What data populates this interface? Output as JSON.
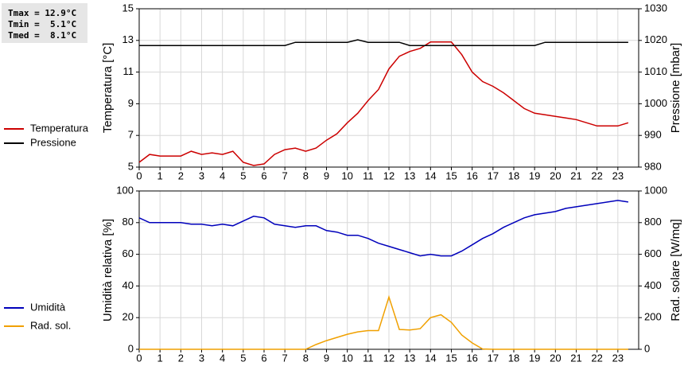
{
  "chart_data": [
    {
      "type": "line",
      "annotations": [
        "Tmax = 12.9°C",
        "Tmin =  5.1°C",
        "Tmed =  8.1°C"
      ],
      "y_label": "Temperatura [°C]",
      "y2_label": "Pressione [mbar]",
      "x": [
        0,
        0.5,
        1,
        1.5,
        2,
        2.5,
        3,
        3.5,
        4,
        4.5,
        5,
        5.5,
        6,
        6.5,
        7,
        7.5,
        8,
        8.5,
        9,
        9.5,
        10,
        10.5,
        11,
        11.5,
        12,
        12.5,
        13,
        13.5,
        14,
        14.5,
        15,
        15.5,
        16,
        16.5,
        17,
        17.5,
        18,
        18.5,
        19,
        19.5,
        20,
        20.5,
        21,
        21.5,
        22,
        22.5,
        23,
        23.5
      ],
      "xlim": [
        0,
        24
      ],
      "xticks": [
        0,
        1,
        2,
        3,
        4,
        5,
        6,
        7,
        8,
        9,
        10,
        11,
        12,
        13,
        14,
        15,
        16,
        17,
        18,
        19,
        20,
        21,
        22,
        23
      ],
      "ylim": [
        5,
        15
      ],
      "yticks": [
        5,
        7,
        9,
        11,
        13,
        15
      ],
      "y2lim": [
        980,
        1030
      ],
      "y2ticks": [
        980,
        990,
        1000,
        1010,
        1020,
        1030
      ],
      "grid": true,
      "series": [
        {
          "name": "Temperatura",
          "color": "#cc0000",
          "values": [
            5.3,
            5.8,
            5.7,
            5.7,
            5.7,
            6.0,
            5.8,
            5.9,
            5.8,
            6.0,
            5.3,
            5.1,
            5.2,
            5.8,
            6.1,
            6.2,
            6.0,
            6.2,
            6.7,
            7.1,
            7.8,
            8.4,
            9.2,
            9.9,
            11.2,
            12.0,
            12.3,
            12.5,
            12.9,
            12.9,
            12.9,
            12.1,
            11.0,
            10.4,
            10.1,
            9.7,
            9.2,
            8.7,
            8.4,
            8.3,
            8.2,
            8.1,
            8.0,
            7.8,
            7.6,
            7.6,
            7.6,
            7.8
          ]
        },
        {
          "name": "Pressione",
          "color": "#000000",
          "axis": "y2",
          "values": [
            1018.4,
            1018.4,
            1018.4,
            1018.4,
            1018.4,
            1018.4,
            1018.4,
            1018.4,
            1018.4,
            1018.4,
            1018.4,
            1018.4,
            1018.4,
            1018.4,
            1018.4,
            1019.4,
            1019.4,
            1019.4,
            1019.4,
            1019.4,
            1019.4,
            1020.2,
            1019.4,
            1019.4,
            1019.4,
            1019.4,
            1018.4,
            1018.4,
            1018.4,
            1018.4,
            1018.4,
            1018.4,
            1018.4,
            1018.4,
            1018.4,
            1018.4,
            1018.4,
            1018.4,
            1018.4,
            1019.4,
            1019.4,
            1019.4,
            1019.4,
            1019.4,
            1019.4,
            1019.4,
            1019.4,
            1019.4
          ]
        }
      ]
    },
    {
      "type": "line",
      "y_label": "Umidità relativa [%]",
      "y2_label": "Rad. solare [W/mq]",
      "x": [
        0,
        0.5,
        1,
        1.5,
        2,
        2.5,
        3,
        3.5,
        4,
        4.5,
        5,
        5.5,
        6,
        6.5,
        7,
        7.5,
        8,
        8.5,
        9,
        9.5,
        10,
        10.5,
        11,
        11.5,
        12,
        12.5,
        13,
        13.5,
        14,
        14.5,
        15,
        15.5,
        16,
        16.5,
        17,
        17.5,
        18,
        18.5,
        19,
        19.5,
        20,
        20.5,
        21,
        21.5,
        22,
        22.5,
        23,
        23.5
      ],
      "xlim": [
        0,
        24
      ],
      "xticks": [
        0,
        1,
        2,
        3,
        4,
        5,
        6,
        7,
        8,
        9,
        10,
        11,
        12,
        13,
        14,
        15,
        16,
        17,
        18,
        19,
        20,
        21,
        22,
        23
      ],
      "ylim": [
        0,
        100
      ],
      "yticks": [
        0,
        20,
        40,
        60,
        80,
        100
      ],
      "y2lim": [
        0,
        1000
      ],
      "y2ticks": [
        0,
        200,
        400,
        600,
        800,
        1000
      ],
      "grid": true,
      "series": [
        {
          "name": "Umidità",
          "color": "#0000bb",
          "values": [
            83,
            80,
            80,
            80,
            80,
            79,
            79,
            78,
            79,
            78,
            81,
            84,
            83,
            79,
            78,
            77,
            78,
            78,
            75,
            74,
            72,
            72,
            70,
            67,
            65,
            63,
            61,
            59,
            60,
            59,
            59,
            62,
            66,
            70,
            73,
            77,
            80,
            83,
            85,
            86,
            87,
            89,
            90,
            91,
            92,
            93,
            94,
            93
          ]
        },
        {
          "name": "Rad. sol.",
          "color": "#f0a000",
          "axis": "y2",
          "values": [
            0,
            0,
            0,
            0,
            0,
            0,
            0,
            0,
            0,
            0,
            0,
            0,
            0,
            0,
            0,
            0,
            0,
            30,
            55,
            75,
            95,
            110,
            118,
            118,
            330,
            125,
            122,
            130,
            200,
            218,
            170,
            90,
            40,
            2,
            0,
            0,
            0,
            0,
            0,
            0,
            0,
            0,
            0,
            0,
            0,
            0,
            0,
            0
          ]
        }
      ]
    }
  ]
}
